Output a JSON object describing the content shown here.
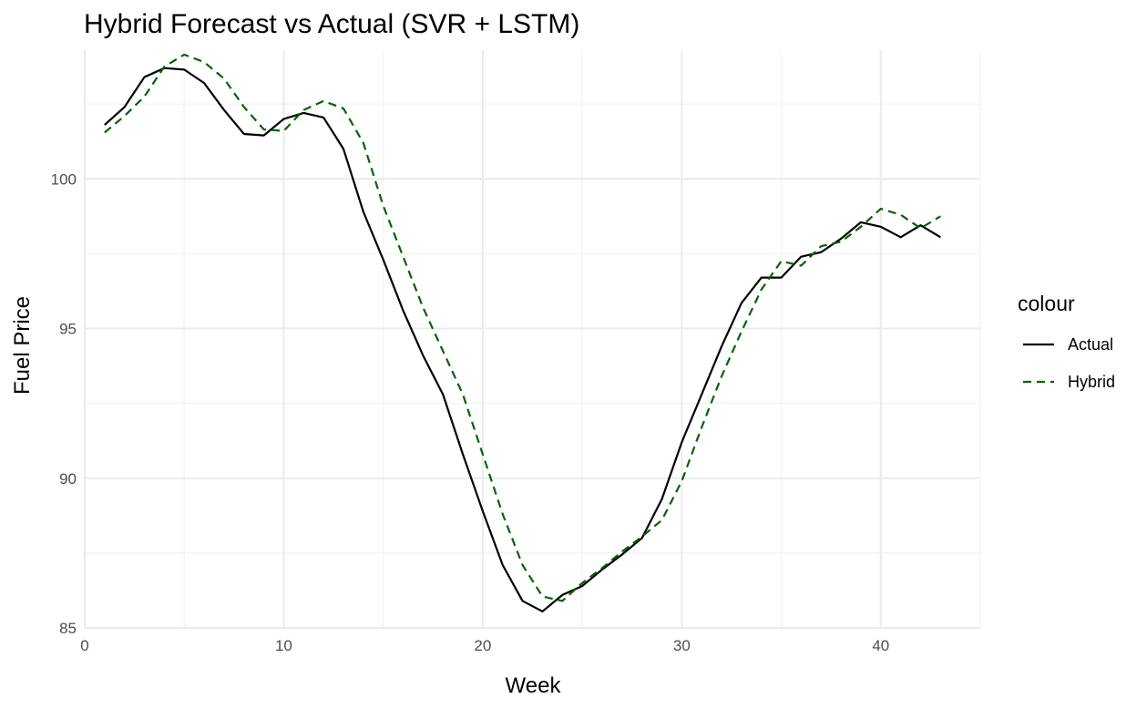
{
  "chart_data": {
    "type": "line",
    "title": "Hybrid Forecast vs Actual (SVR + LSTM)",
    "xlabel": "Week",
    "ylabel": "Fuel Price",
    "xlim": [
      0,
      45
    ],
    "ylim": [
      85,
      104.3
    ],
    "x_ticks": [
      0,
      10,
      20,
      30,
      40
    ],
    "x_tick_labels": [
      "0",
      "10",
      "20",
      "30",
      "40"
    ],
    "y_ticks": [
      85,
      90,
      95,
      100
    ],
    "y_tick_labels": [
      "85",
      "90",
      "95",
      "100"
    ],
    "grid": true,
    "legend": {
      "title": "colour",
      "position": "right"
    },
    "x": [
      1,
      2,
      3,
      4,
      5,
      6,
      7,
      8,
      9,
      10,
      11,
      12,
      13,
      14,
      15,
      16,
      17,
      18,
      19,
      20,
      21,
      22,
      23,
      24,
      25,
      26,
      27,
      28,
      29,
      30,
      31,
      32,
      33,
      34,
      35,
      36,
      37,
      38,
      39,
      40,
      41,
      42,
      43
    ],
    "series": [
      {
        "name": "Actual",
        "color": "#000000",
        "dash": "solid",
        "values": [
          101.8,
          102.4,
          103.4,
          103.7,
          103.65,
          103.2,
          102.3,
          101.5,
          101.45,
          102.0,
          102.2,
          102.05,
          101.0,
          98.9,
          97.3,
          95.6,
          94.1,
          92.8,
          90.8,
          88.9,
          87.1,
          85.9,
          85.55,
          86.1,
          86.4,
          86.95,
          87.45,
          88.0,
          89.3,
          91.2,
          92.8,
          94.4,
          95.85,
          96.7,
          96.7,
          97.4,
          97.55,
          98.0,
          98.55,
          98.4,
          98.05,
          98.45,
          98.05
        ]
      },
      {
        "name": "Hybrid",
        "color": "#006400",
        "dash": "dashed",
        "values": [
          101.55,
          102.1,
          102.75,
          103.75,
          104.15,
          103.9,
          103.35,
          102.4,
          101.65,
          101.6,
          102.3,
          102.6,
          102.35,
          101.2,
          99.1,
          97.4,
          95.7,
          94.25,
          92.8,
          90.8,
          88.8,
          87.1,
          86.05,
          85.9,
          86.5,
          87.0,
          87.55,
          88.05,
          88.6,
          89.9,
          91.7,
          93.4,
          94.9,
          96.3,
          97.25,
          97.1,
          97.75,
          97.9,
          98.4,
          99.0,
          98.8,
          98.35,
          98.75
        ]
      }
    ]
  }
}
